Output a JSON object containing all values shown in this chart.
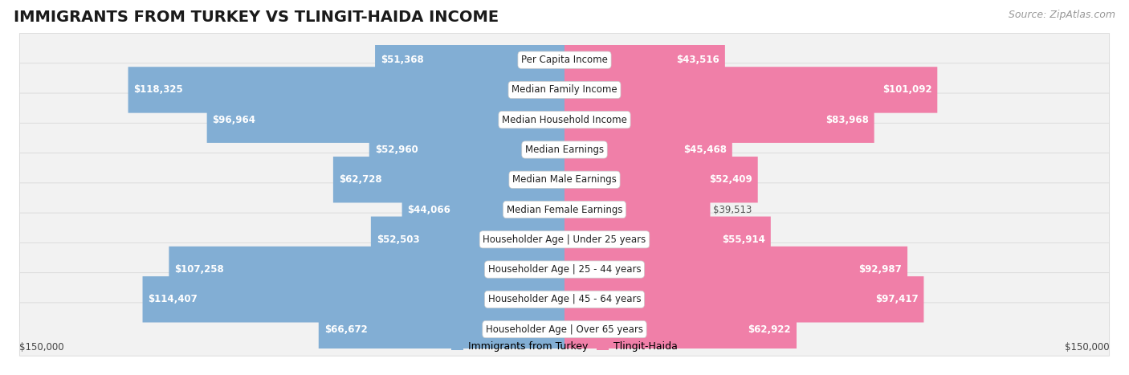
{
  "title": "IMMIGRANTS FROM TURKEY VS TLINGIT-HAIDA INCOME",
  "source": "Source: ZipAtlas.com",
  "categories": [
    "Per Capita Income",
    "Median Family Income",
    "Median Household Income",
    "Median Earnings",
    "Median Male Earnings",
    "Median Female Earnings",
    "Householder Age | Under 25 years",
    "Householder Age | 25 - 44 years",
    "Householder Age | 45 - 64 years",
    "Householder Age | Over 65 years"
  ],
  "turkey_values": [
    51368,
    118325,
    96964,
    52960,
    62728,
    44066,
    52503,
    107258,
    114407,
    66672
  ],
  "tlingit_values": [
    43516,
    101092,
    83968,
    45468,
    52409,
    39513,
    55914,
    92987,
    97417,
    62922
  ],
  "turkey_color": "#82aed4",
  "tlingit_color": "#f07fa8",
  "turkey_label": "Immigrants from Turkey",
  "tlingit_label": "Tlingit-Haida",
  "max_value": 150000,
  "background_color": "#ffffff",
  "row_bg_color": "#f2f2f2",
  "row_border_color": "#d8d8d8",
  "xlabel_left": "$150,000",
  "xlabel_right": "$150,000",
  "title_fontsize": 14,
  "source_fontsize": 9,
  "cat_fontsize": 8.5,
  "value_fontsize": 8.5,
  "legend_fontsize": 9,
  "inside_threshold": 0.28
}
